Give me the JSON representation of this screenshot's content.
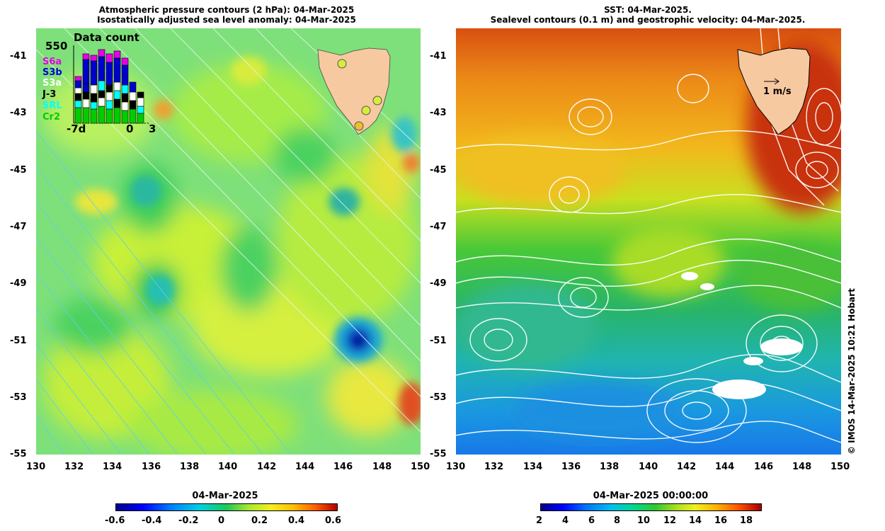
{
  "left_panel": {
    "title_line1": "Atmospheric pressure contours (2 hPa): 04-Mar-2025",
    "title_line2": "Isostatically adjusted sea level anomaly: 04-Mar-2025",
    "inset": {
      "title": "Data count",
      "max": "550",
      "missions": [
        {
          "name": "S6a",
          "color": "#e600e6"
        },
        {
          "name": "S3b",
          "color": "#0000cc"
        },
        {
          "name": "S3a",
          "color": "#ffffff"
        },
        {
          "name": "J-3",
          "color": "#000000"
        },
        {
          "name": "SRL",
          "color": "#00ffff"
        },
        {
          "name": "Cr2",
          "color": "#00cc00"
        }
      ],
      "x_left": "-7d",
      "x_mid": "0",
      "x_right": "3"
    },
    "colorbar": {
      "title": "04-Mar-2025",
      "ticks": [
        "-0.6",
        "-0.4",
        "-0.2",
        "0",
        "0.2",
        "0.4",
        "0.6"
      ]
    }
  },
  "right_panel": {
    "title_line1": "SST: 04-Mar-2025.",
    "title_line2": "Sealevel contours (0.1 m) and geostrophic velocity: 04-Mar-2025.",
    "scale_label": "1 m/s",
    "colorbar": {
      "title": "04-Mar-2025 00:00:00",
      "ticks": [
        "2",
        "4",
        "6",
        "8",
        "10",
        "12",
        "14",
        "16",
        "18"
      ]
    }
  },
  "axes": {
    "y_ticks": [
      "-41",
      "-43",
      "-45",
      "-47",
      "-49",
      "-51",
      "-53",
      "-55"
    ],
    "x_ticks": [
      "130",
      "132",
      "134",
      "136",
      "138",
      "140",
      "142",
      "144",
      "146",
      "148",
      "150"
    ]
  },
  "credit": "© IMOS 14-Mar-2025 10:21 Hobart"
}
